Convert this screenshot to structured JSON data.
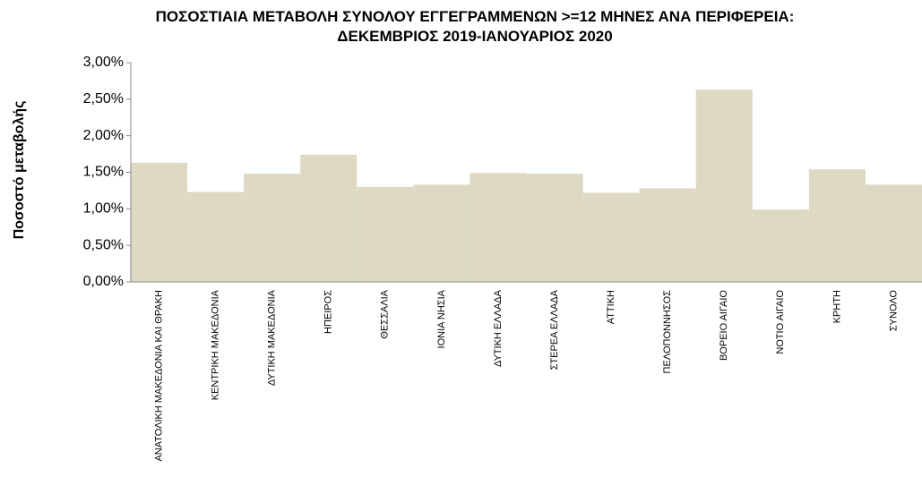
{
  "chart_data": {
    "type": "bar",
    "title": "ΠΟΣΟΣΤΙΑΙΑ ΜΕΤΑΒΟΛΗ  ΣΥΝΟΛΟΥ ΕΓΓΕΓΡΑΜΜΕΝΩΝ >=12 ΜΗΝΕΣ ΑΝΑ ΠΕΡΙΦΕΡΕΙΑ: ΔΕΚΕΜΒΡΙΟΣ 2019-ΙΑΝΟΥΑΡΙΟΣ 2020",
    "y_label": "Ποσοστό μεταβολής",
    "categories": [
      "ΑΝΑΤΟΛΙΚΗ ΜΑΚΕΔΟΝΙΑ ΚΑΙ ΘΡΑΚΗ",
      "ΚΕΝΤΡΙΚΗ ΜΑΚΕΔΟΝΙΑ",
      "ΔΥΤΙΚΗ ΜΑΚΕΔΟΝΙΑ",
      "ΗΠΕΙΡΟΣ",
      "ΘΕΣΣΑΛΙΑ",
      "ΙΟΝΙΑ ΝΗΣΙΑ",
      "ΔΥΤΙΚΗ ΕΛΛΑΔΑ",
      "ΣΤΕΡΕΑ ΕΛΛΑΔΑ",
      "ΑΤΤΙΚΗ",
      "ΠΕΛΟΠΟΝΝΗΣΟΣ",
      "ΒΟΡΕΙΟ ΑΙΓΑΙΟ",
      "ΝΟΤΙΟ ΑΙΓΑΙΟ",
      "ΚΡΗΤΗ",
      "ΣΥΝΟΛΟ"
    ],
    "values": [
      1.63,
      1.23,
      1.48,
      1.74,
      1.3,
      1.33,
      1.49,
      1.48,
      1.22,
      1.28,
      2.63,
      0.99,
      1.54,
      1.33
    ],
    "color": "#ddd9c3",
    "ylim": [
      0,
      3
    ],
    "yticks": [
      {
        "value": 0,
        "label": "0,00%"
      },
      {
        "value": 0.5,
        "label": "0,50%"
      },
      {
        "value": 1,
        "label": "1,00%"
      },
      {
        "value": 1.5,
        "label": "1,50%"
      },
      {
        "value": 2,
        "label": "2,00%"
      },
      {
        "value": 2.5,
        "label": "2,50%"
      },
      {
        "value": 3,
        "label": "3,00%"
      }
    ],
    "grid": false
  }
}
